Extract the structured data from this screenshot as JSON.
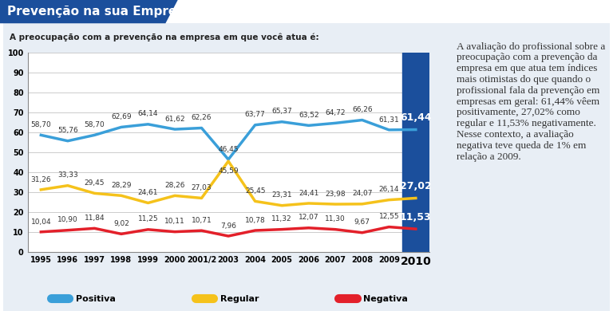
{
  "chart_data": {
    "type": "line",
    "title": "Prevenção na sua Empresa",
    "subtitle": "A preocupação com a prevenção na empresa em que você atua é:",
    "annotations": [
      "A avaliação do profissional sobre a preocupação com a prevenção da empresa em que atua tem índices mais otimistas do que quando o profissional fala da prevenção em empresas em geral: 61,44% vêem positivamente, 27,02% como regular e 11,53% negativamente. Nesse contexto, a avaliação negativa teve queda de 1% em relação a 2009."
    ],
    "categories": [
      "1995",
      "1996",
      "1997",
      "1998",
      "1999",
      "2000",
      "2001/2",
      "2003",
      "2004",
      "2005",
      "2006",
      "2007",
      "2008",
      "2009",
      "2010"
    ],
    "series": [
      {
        "name": "Positiva",
        "color": "#3a9fd9",
        "values": [
          58.7,
          55.76,
          58.7,
          62.69,
          64.14,
          61.62,
          62.26,
          46.45,
          63.77,
          65.37,
          63.52,
          64.72,
          66.26,
          61.31,
          61.44
        ],
        "value_labels": [
          "58,70",
          "55,76",
          "58,70",
          "62,69",
          "64,14",
          "61,62",
          "62,26",
          "46,45",
          "63,77",
          "65,37",
          "63,52",
          "64,72",
          "66,26",
          "61,31",
          "61,44"
        ]
      },
      {
        "name": "Regular",
        "color": "#f5c21b",
        "values": [
          31.26,
          33.33,
          29.45,
          28.29,
          24.61,
          28.26,
          27.03,
          45.59,
          25.45,
          23.31,
          24.41,
          23.98,
          24.07,
          26.14,
          27.02
        ],
        "value_labels": [
          "31,26",
          "33,33",
          "29,45",
          "28,29",
          "24,61",
          "28,26",
          "27,03",
          "45,59",
          "25,45",
          "23,31",
          "24,41",
          "23,98",
          "24,07",
          "26,14",
          "27,02"
        ]
      },
      {
        "name": "Negativa",
        "color": "#e3202a",
        "values": [
          10.04,
          10.9,
          11.84,
          9.02,
          11.25,
          10.11,
          10.71,
          7.96,
          10.78,
          11.32,
          12.07,
          11.3,
          9.67,
          12.55,
          11.53
        ],
        "value_labels": [
          "10,04",
          "10,90",
          "11,84",
          "9,02",
          "11,25",
          "10,11",
          "10,71",
          "7,96",
          "10,78",
          "11,32",
          "12,07",
          "11,30",
          "9,67",
          "12,55",
          "11,53"
        ]
      }
    ],
    "ylim": [
      0,
      100
    ],
    "yticks": [
      0,
      10,
      20,
      30,
      40,
      50,
      60,
      70,
      80,
      90,
      100
    ],
    "grid": true,
    "legend": "lower left",
    "data_labels": true,
    "line_style": "solid"
  }
}
